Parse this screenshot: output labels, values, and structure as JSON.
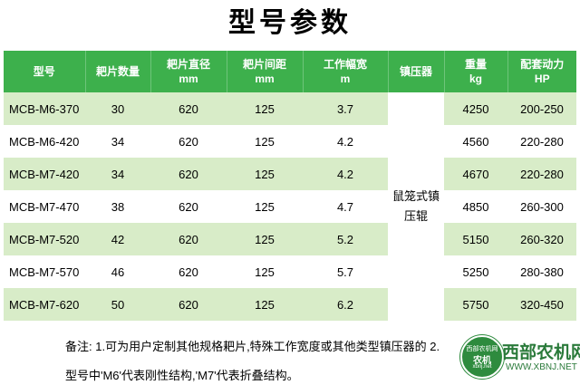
{
  "title": "型号参数",
  "table": {
    "headers": [
      {
        "line1": "型号",
        "line2": ""
      },
      {
        "line1": "耙片数量",
        "line2": ""
      },
      {
        "line1": "耙片直径",
        "line2": "mm"
      },
      {
        "line1": "耙片间距",
        "line2": "mm"
      },
      {
        "line1": "工作幅宽",
        "line2": "m"
      },
      {
        "line1": "镇压器",
        "line2": ""
      },
      {
        "line1": "重量",
        "line2": "kg"
      },
      {
        "line1": "配套动力",
        "line2": "HP"
      }
    ],
    "rows": [
      {
        "model": "MCB-M6-370",
        "count": "30",
        "diameter": "620",
        "spacing": "125",
        "width": "3.7",
        "weight": "4250",
        "power": "200-250"
      },
      {
        "model": "MCB-M6-420",
        "count": "34",
        "diameter": "620",
        "spacing": "125",
        "width": "4.2",
        "weight": "4560",
        "power": "220-280"
      },
      {
        "model": "MCB-M7-420",
        "count": "34",
        "diameter": "620",
        "spacing": "125",
        "width": "4.2",
        "weight": "4670",
        "power": "220-280"
      },
      {
        "model": "MCB-M7-470",
        "count": "38",
        "diameter": "620",
        "spacing": "125",
        "width": "4.7",
        "weight": "4850",
        "power": "260-300"
      },
      {
        "model": "MCB-M7-520",
        "count": "42",
        "diameter": "620",
        "spacing": "125",
        "width": "5.2",
        "weight": "5150",
        "power": "260-320"
      },
      {
        "model": "MCB-M7-570",
        "count": "46",
        "diameter": "620",
        "spacing": "125",
        "width": "5.7",
        "weight": "5250",
        "power": "280-380"
      },
      {
        "model": "MCB-M7-620",
        "count": "50",
        "diameter": "620",
        "spacing": "125",
        "width": "6.2",
        "weight": "5750",
        "power": "320-450"
      }
    ],
    "roller_line1": "鼠笼式镇",
    "roller_line2": "压辊"
  },
  "note": {
    "line1": "备注: 1.可为用户定制其他规格耙片,特殊工作宽度或其他类型镇压器的  2.",
    "line2": "型号中'M6'代表刚性结构,'M7'代表折叠结构。"
  },
  "watermark": {
    "badge_top": "西部农机网",
    "badge_mid": "农机",
    "badge_url": "xbnj.net",
    "text": "西部农机网",
    "url": "WWW.XBNJ.NET"
  },
  "colors": {
    "header_green": "#3db04c",
    "band_green": "#d8ecc8"
  }
}
